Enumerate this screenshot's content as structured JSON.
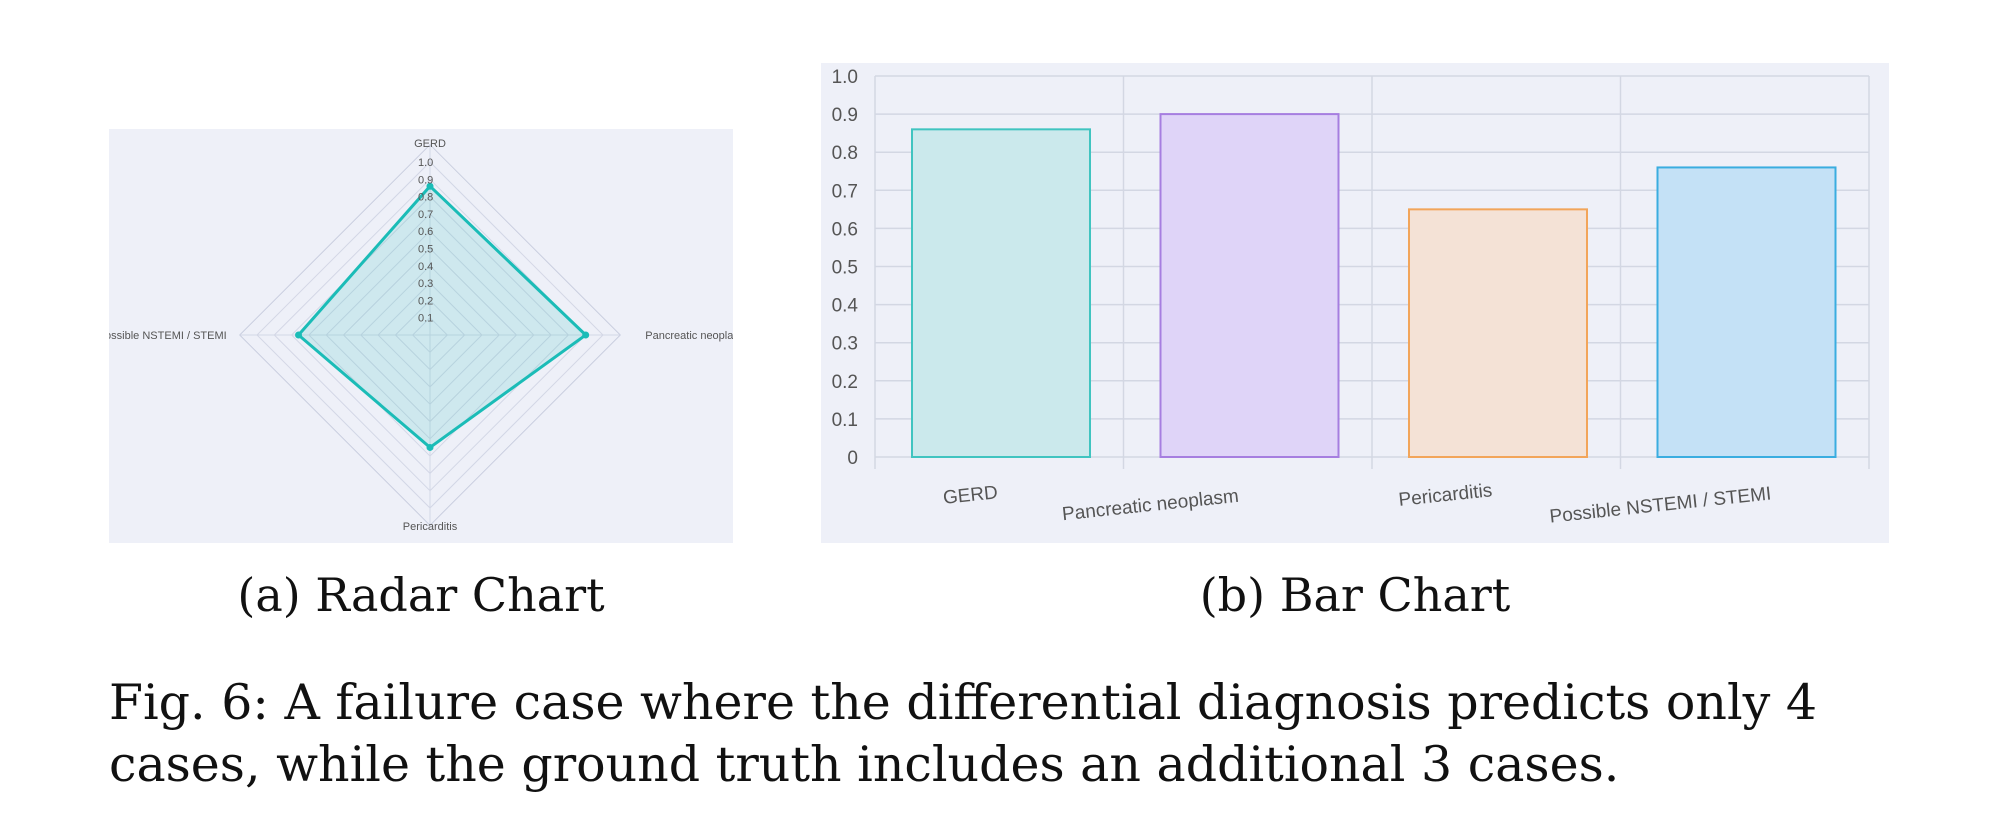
{
  "chart_data": [
    {
      "type": "radar",
      "categories": [
        "GERD",
        "Pancreatic neoplasm",
        "Pericarditis",
        "Possible NSTEMI / STEMI"
      ],
      "values": [
        0.86,
        0.9,
        0.65,
        0.76
      ],
      "radial_ticks": [
        "0.1",
        "0.2",
        "0.3",
        "0.4",
        "0.5",
        "0.6",
        "0.7",
        "0.8",
        "0.9",
        "1.0"
      ],
      "rlim": [
        0,
        1.0
      ],
      "color": "#1bbcb7",
      "grid": true
    },
    {
      "type": "bar",
      "categories": [
        "GERD",
        "Pancreatic neoplasm",
        "Pericarditis",
        "Possible NSTEMI / STEMI"
      ],
      "values": [
        0.86,
        0.9,
        0.65,
        0.76
      ],
      "colors": [
        "#40c4c0",
        "#a67ee0",
        "#f2a55a",
        "#3aade0"
      ],
      "fills": [
        "#cbe9ec",
        "#dfd4f8",
        "#f4e2d6",
        "#c4e1f6"
      ],
      "ylim": [
        0,
        1.0
      ],
      "yticks": [
        "0",
        "0.1",
        "0.2",
        "0.3",
        "0.4",
        "0.5",
        "0.6",
        "0.7",
        "0.8",
        "0.9",
        "1.0"
      ],
      "grid": true
    }
  ],
  "subcaptions": {
    "a": "(a) Radar Chart",
    "b": "(b) Bar Chart"
  },
  "caption": "Fig. 6: A failure case where the differential diagnosis predicts only 4 cases, while the ground truth includes an additional 3 cases."
}
